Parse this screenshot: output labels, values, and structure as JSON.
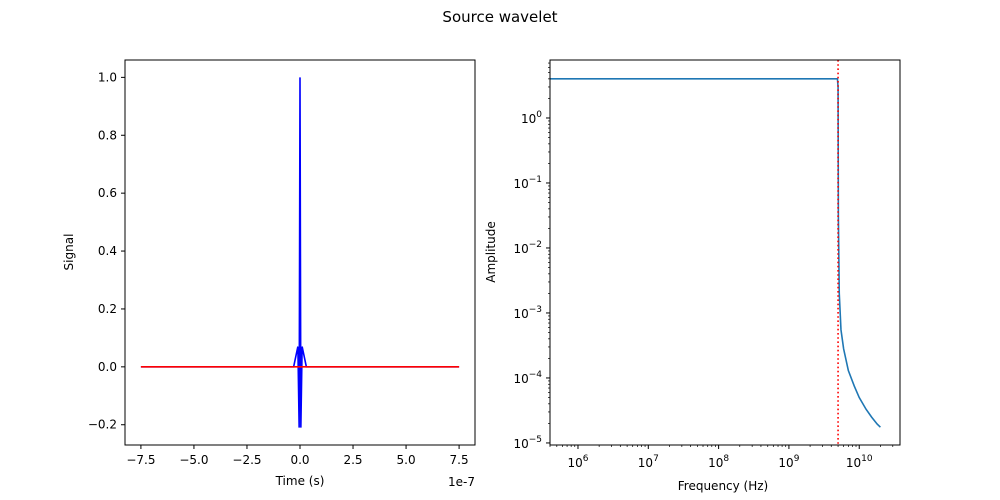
{
  "figure": {
    "title": "Source wavelet"
  },
  "chart_data": [
    {
      "type": "line",
      "xlabel": "Time (s)",
      "ylabel": "Signal",
      "x_offset_text": "1e-7",
      "xlim": [
        -8.25,
        8.25
      ],
      "ylim": [
        -0.27,
        1.06
      ],
      "x_ticks": [
        -7.5,
        -5.0,
        -2.5,
        0.0,
        2.5,
        5.0,
        7.5
      ],
      "x_tick_labels": [
        "−7.5",
        "−5.0",
        "−2.5",
        "0.0",
        "2.5",
        "5.0",
        "7.5"
      ],
      "y_ticks": [
        -0.2,
        0.0,
        0.2,
        0.4,
        0.6,
        0.8,
        1.0
      ],
      "y_tick_labels": [
        "−0.2",
        "0.0",
        "0.2",
        "0.4",
        "0.6",
        "0.8",
        "1.0"
      ],
      "grid": false,
      "series": [
        {
          "color": "#0000ff",
          "x": [
            -7.5,
            -0.3,
            -0.1,
            -0.04,
            0.0,
            0.04,
            0.1,
            0.3,
            7.5
          ],
          "y": [
            0.0,
            0.0,
            0.07,
            -0.21,
            1.0,
            -0.21,
            0.07,
            0.0,
            0.0
          ]
        },
        {
          "color": "#ff0000",
          "x": [
            -7.5,
            7.5
          ],
          "y": [
            0.0,
            0.0
          ]
        }
      ]
    },
    {
      "type": "line",
      "xlabel": "Frequency (Hz)",
      "ylabel": "Amplitude",
      "xscale": "log",
      "yscale": "log",
      "xlim": [
        400000,
        38000000000
      ],
      "ylim": [
        9.3e-06,
        7.8
      ],
      "x_ticks": [
        1000000,
        10000000,
        100000000,
        1000000000,
        10000000000
      ],
      "x_tick_labels": [
        "10^6",
        "10^7",
        "10^8",
        "10^9",
        "10^10"
      ],
      "y_ticks": [
        1e-05,
        0.0001,
        0.001,
        0.01,
        0.1,
        1
      ],
      "y_tick_labels": [
        "10^−5",
        "10^−4",
        "10^−3",
        "10^−2",
        "10^−1",
        "10^0"
      ],
      "grid": false,
      "series": [
        {
          "color": "#1f77b4",
          "x": [
            400000,
            4900000000,
            5000000000,
            5050000000,
            5200000000,
            5500000000,
            6000000000,
            7000000000,
            8500000000,
            10000000000,
            12500000000,
            15000000000,
            18000000000,
            20000000000
          ],
          "y": [
            4.0,
            4.0,
            3.0,
            0.03,
            0.002,
            0.00055,
            0.00028,
            0.00013,
            7.5e-05,
            5e-05,
            3.3e-05,
            2.5e-05,
            1.95e-05,
            1.75e-05
          ]
        }
      ],
      "vline": {
        "x": 5000000000,
        "color": "#ff0000",
        "style": "dotted"
      }
    }
  ]
}
